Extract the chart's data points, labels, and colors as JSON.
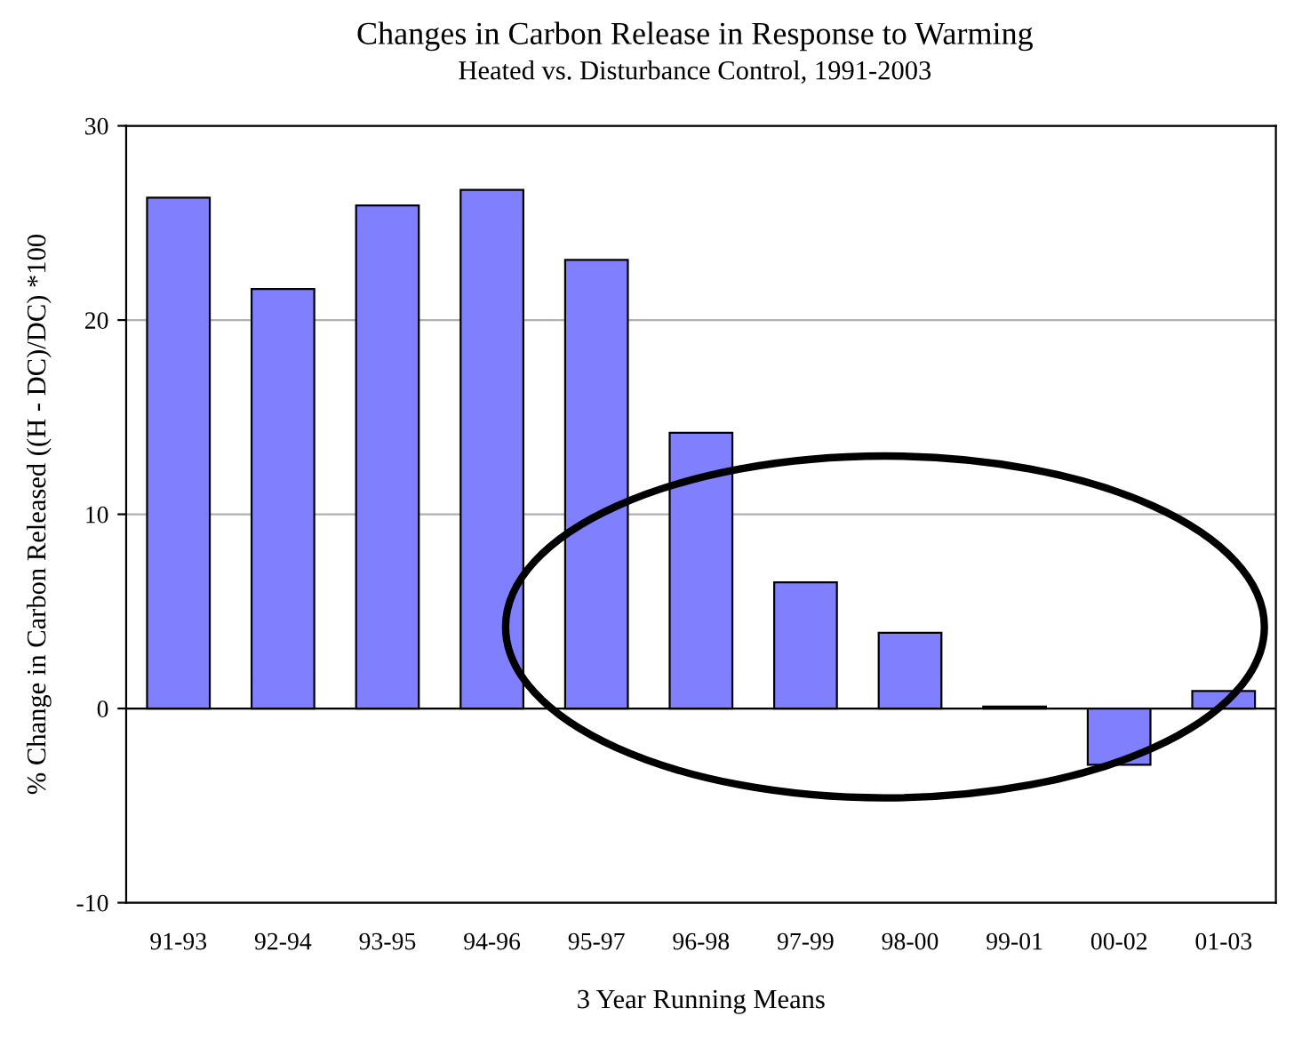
{
  "chart_data": {
    "type": "bar",
    "title": "Changes in Carbon Release in Response to Warming",
    "subtitle": "Heated vs. Disturbance Control, 1991-2003",
    "xlabel": "3 Year Running Means",
    "ylabel": "% Change in Carbon Released ((H - DC)/DC) *100",
    "categories": [
      "91-93",
      "92-94",
      "93-95",
      "94-96",
      "95-97",
      "96-98",
      "97-99",
      "98-00",
      "99-01",
      "00-02",
      "01-03"
    ],
    "values": [
      26.3,
      21.6,
      25.9,
      26.7,
      23.1,
      14.2,
      6.5,
      3.9,
      0.1,
      -2.9,
      0.9
    ],
    "color": "#8080ff",
    "ylim": [
      -10,
      30
    ],
    "yticks": [
      -10,
      0,
      10,
      20,
      30
    ],
    "grid": "y"
  }
}
